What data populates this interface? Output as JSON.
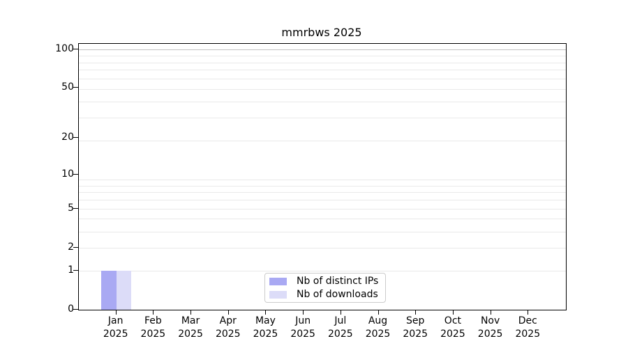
{
  "chart_data": {
    "type": "bar",
    "title": "mmrbws 2025",
    "x_categories": [
      "Jan",
      "Feb",
      "Mar",
      "Apr",
      "May",
      "Jun",
      "Jul",
      "Aug",
      "Sep",
      "Oct",
      "Nov",
      "Dec"
    ],
    "x_year_label": "2025",
    "series": [
      {
        "name": "Nb of distinct IPs",
        "color": "#a9a9f3",
        "values": [
          1,
          0,
          0,
          0,
          0,
          0,
          0,
          0,
          0,
          0,
          0,
          0
        ]
      },
      {
        "name": "Nb of downloads",
        "color": "#dcdcf8",
        "values": [
          1,
          0,
          0,
          0,
          0,
          0,
          0,
          0,
          0,
          0,
          0,
          0
        ]
      }
    ],
    "y_scale": "log1p",
    "y_ticks": [
      0,
      1,
      2,
      5,
      10,
      20,
      50,
      100
    ],
    "y_tick_labels": [
      "0",
      "1",
      "2",
      "5",
      "10",
      "20",
      "50",
      "100"
    ],
    "ylim": [
      0,
      110
    ],
    "grid": "horizontal",
    "legend_position": "lower center"
  },
  "colors": {
    "grid_minor": "#e9e9e9",
    "grid_top": "#c3c3c3",
    "spine": "#000000",
    "legend_border": "#cccccc",
    "background": "#ffffff",
    "text": "#000000"
  }
}
